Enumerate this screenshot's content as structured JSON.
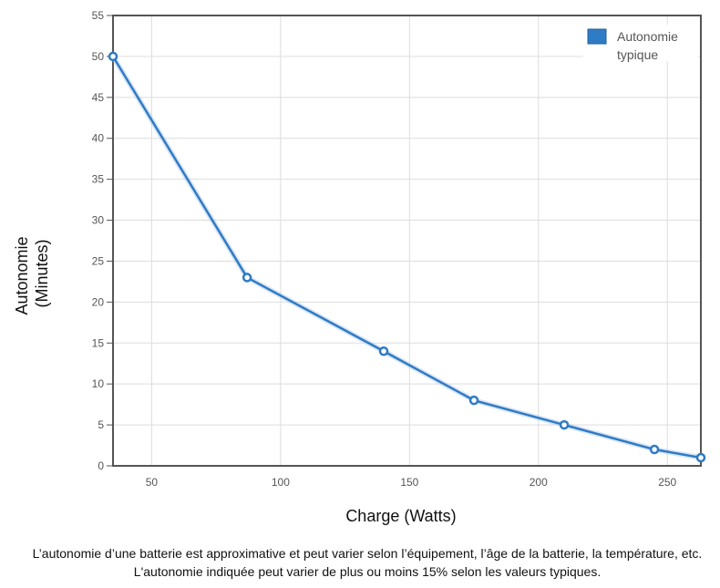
{
  "chart_data": {
    "type": "line",
    "xlabel": "Charge (Watts)",
    "ylabel_lines": [
      "Autonomie",
      "(Minutes)"
    ],
    "xlim": [
      35,
      263
    ],
    "ylim": [
      0,
      55
    ],
    "x_ticks": [
      50,
      100,
      150,
      200,
      250
    ],
    "y_ticks": [
      0,
      5,
      10,
      15,
      20,
      25,
      30,
      35,
      40,
      45,
      50,
      55
    ],
    "grid": true,
    "legend_position": "top-right",
    "series": [
      {
        "name_lines": [
          "Autonomie",
          "typique"
        ],
        "color": "#2f7bc4",
        "x": [
          35,
          87,
          140,
          175,
          210,
          245,
          263
        ],
        "y": [
          50,
          23,
          14,
          8,
          5,
          2,
          1
        ]
      }
    ]
  },
  "caption": "L’autonomie d’une batterie est approximative et peut varier selon l’équipement, l’âge de la batterie, la température, etc. L'autonomie indiquée peut varier de plus ou moins 15% selon les valeurs typiques."
}
